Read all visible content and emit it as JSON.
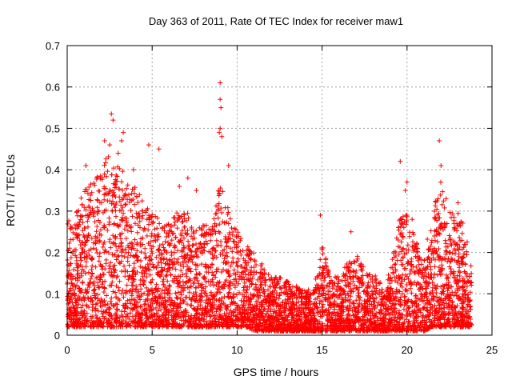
{
  "chart_data": {
    "type": "scatter",
    "title": "Day 363 of 2011, Rate Of TEC Index for receiver maw1",
    "xlabel": "GPS time / hours",
    "ylabel": "ROTI / TECUs",
    "xlim": [
      0,
      25
    ],
    "ylim": [
      0,
      0.7
    ],
    "xticks": [
      "0",
      "5",
      "10",
      "15",
      "20",
      "25"
    ],
    "yticks": [
      "0",
      "0.1",
      "0.2",
      "0.3",
      "0.4",
      "0.5",
      "0.6",
      "0.7"
    ],
    "grid": true,
    "marker": "+",
    "marker_color": "#ff0000",
    "series_envelope": {
      "description_hours": [
        0,
        0.5,
        1,
        1.5,
        2,
        2.5,
        3,
        3.5,
        4,
        4.5,
        5,
        5.5,
        6,
        6.5,
        7,
        7.5,
        8,
        8.5,
        9,
        9.5,
        10,
        10.5,
        11,
        11.5,
        12,
        12.5,
        13,
        13.5,
        14,
        14.5,
        15,
        15.5,
        16,
        16.5,
        17,
        17.5,
        18,
        18.5,
        19,
        19.5,
        20,
        20.5,
        21,
        21.5,
        22,
        22.5,
        23,
        23.5,
        23.8
      ],
      "typical_max": [
        0.28,
        0.3,
        0.35,
        0.38,
        0.42,
        0.45,
        0.42,
        0.38,
        0.36,
        0.32,
        0.3,
        0.28,
        0.27,
        0.3,
        0.3,
        0.27,
        0.27,
        0.26,
        0.4,
        0.3,
        0.26,
        0.22,
        0.2,
        0.17,
        0.14,
        0.14,
        0.13,
        0.12,
        0.11,
        0.11,
        0.22,
        0.15,
        0.14,
        0.18,
        0.2,
        0.16,
        0.15,
        0.13,
        0.15,
        0.28,
        0.3,
        0.23,
        0.19,
        0.3,
        0.38,
        0.3,
        0.3,
        0.25,
        0.16
      ],
      "typical_min": [
        0.02,
        0.02,
        0.02,
        0.02,
        0.02,
        0.02,
        0.02,
        0.02,
        0.02,
        0.02,
        0.02,
        0.02,
        0.02,
        0.02,
        0.02,
        0.02,
        0.02,
        0.02,
        0.02,
        0.02,
        0.02,
        0.02,
        0.01,
        0.01,
        0.01,
        0.01,
        0.01,
        0.01,
        0.01,
        0.01,
        0.01,
        0.01,
        0.01,
        0.01,
        0.01,
        0.01,
        0.01,
        0.01,
        0.01,
        0.01,
        0.01,
        0.01,
        0.01,
        0.02,
        0.02,
        0.02,
        0.02,
        0.02,
        0.02
      ]
    },
    "outliers": [
      [
        2.6,
        0.535
      ],
      [
        2.7,
        0.52
      ],
      [
        3.3,
        0.49
      ],
      [
        3.2,
        0.47
      ],
      [
        2.2,
        0.47
      ],
      [
        2.5,
        0.46
      ],
      [
        4.8,
        0.46
      ],
      [
        5.4,
        0.45
      ],
      [
        3.0,
        0.44
      ],
      [
        3.9,
        0.4
      ],
      [
        1.1,
        0.41
      ],
      [
        9.0,
        0.61
      ],
      [
        9.0,
        0.57
      ],
      [
        9.05,
        0.55
      ],
      [
        9.0,
        0.5
      ],
      [
        8.95,
        0.49
      ],
      [
        9.1,
        0.48
      ],
      [
        9.5,
        0.41
      ],
      [
        7.1,
        0.38
      ],
      [
        6.6,
        0.36
      ],
      [
        7.6,
        0.35
      ],
      [
        19.6,
        0.42
      ],
      [
        19.9,
        0.35
      ],
      [
        20.0,
        0.37
      ],
      [
        21.9,
        0.47
      ],
      [
        22.0,
        0.41
      ],
      [
        22.3,
        0.33
      ],
      [
        23.0,
        0.32
      ],
      [
        20.3,
        0.28
      ],
      [
        14.9,
        0.29
      ],
      [
        16.7,
        0.25
      ]
    ]
  }
}
